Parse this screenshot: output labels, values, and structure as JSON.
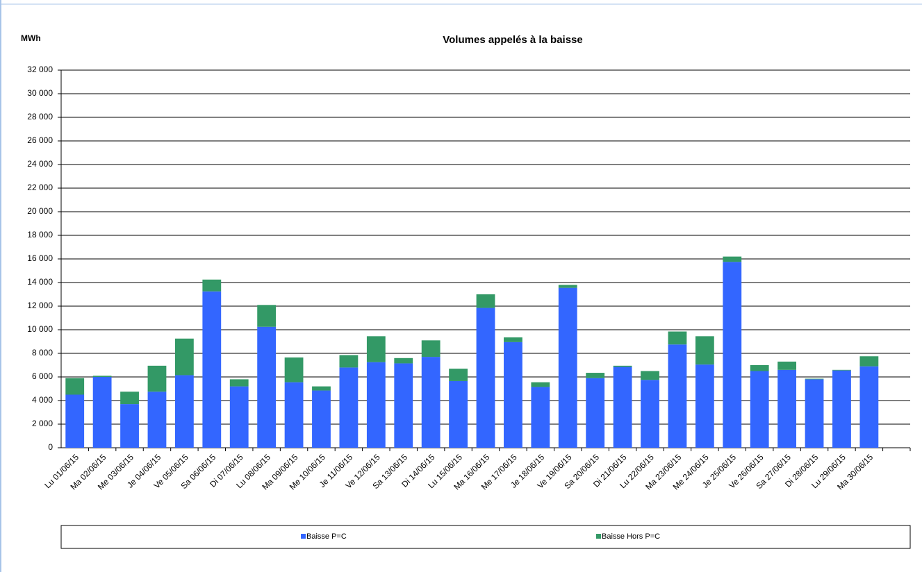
{
  "chart_data": {
    "type": "stacked_bar",
    "title": "Volumes appelés à la baisse",
    "y_label": "MWh",
    "categories": [
      "Lu 01/06/15",
      "Ma 02/06/15",
      "Me 03/06/15",
      "Je 04/06/15",
      "Ve 05/06/15",
      "Sa 06/06/15",
      "Di 07/06/15",
      "Lu 08/06/15",
      "Ma 09/06/15",
      "Me 10/06/15",
      "Je 11/06/15",
      "Ve 12/06/15",
      "Sa 13/06/15",
      "Di 14/06/15",
      "Lu 15/06/15",
      "Ma 16/06/15",
      "Me 17/06/15",
      "Je 18/06/15",
      "Ve 19/06/15",
      "Sa 20/06/15",
      "Di 21/06/15",
      "Lu 22/06/15",
      "Ma 23/06/15",
      "Me 24/06/15",
      "Je 25/06/15",
      "Ve 26/06/15",
      "Sa 27/06/15",
      "Di 28/06/15",
      "Lu 29/06/15",
      "Ma 30/06/15",
      null
    ],
    "series": [
      {
        "name": "Baisse P=C",
        "color": "#3366ff",
        "values": [
          4500,
          6000,
          3700,
          4750,
          6150,
          13250,
          5200,
          10250,
          5550,
          4850,
          6800,
          7250,
          7150,
          7700,
          5650,
          11850,
          8950,
          5150,
          13550,
          5900,
          6850,
          5750,
          8750,
          7050,
          15750,
          6500,
          6600,
          5800,
          6550,
          6900,
          null
        ]
      },
      {
        "name": "Baisse Hors P=C",
        "color": "#339966",
        "values": [
          1400,
          100,
          1050,
          2200,
          3100,
          1000,
          600,
          1850,
          2100,
          350,
          1050,
          2200,
          450,
          1400,
          1050,
          1150,
          400,
          400,
          250,
          450,
          100,
          750,
          1100,
          2400,
          450,
          500,
          700,
          50,
          50,
          850,
          null
        ]
      }
    ],
    "ylim": [
      0,
      32000
    ],
    "yticks": [
      0,
      {
        "value": 2000,
        "label": "2 000"
      },
      {
        "value": 4000,
        "label": "4 000"
      },
      {
        "value": 6000,
        "label": "6 000"
      },
      {
        "value": 8000,
        "label": "8 000"
      },
      {
        "value": 10000,
        "label": "10 000"
      },
      {
        "value": 12000,
        "label": "12 000"
      },
      {
        "value": 14000,
        "label": "14 000"
      },
      {
        "value": 16000,
        "label": "16 000"
      },
      {
        "value": 18000,
        "label": "18 000"
      },
      {
        "value": 20000,
        "label": "20 000"
      },
      {
        "value": 22000,
        "label": "22 000"
      },
      {
        "value": 24000,
        "label": "24 000"
      },
      {
        "value": 26000,
        "label": "26 000"
      },
      {
        "value": 28000,
        "label": "28 000"
      },
      {
        "value": 30000,
        "label": "30 000"
      },
      {
        "value": 32000,
        "label": "32 000"
      }
    ],
    "grid": true,
    "legend": "bottom"
  }
}
